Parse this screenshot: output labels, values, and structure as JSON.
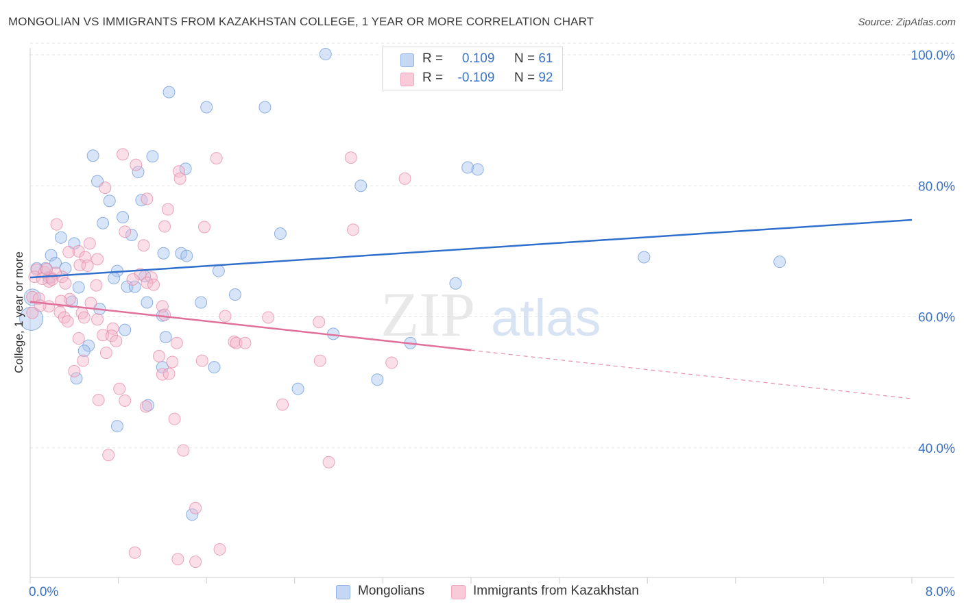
{
  "chart_data": {
    "type": "scatter",
    "title": "MONGOLIAN VS IMMIGRANTS FROM KAZAKHSTAN COLLEGE, 1 YEAR OR MORE CORRELATION CHART",
    "source": "Source: ZipAtlas.com",
    "ylabel": "College, 1 year or more",
    "xlabel": "",
    "xlim": [
      0,
      8
    ],
    "ylim": [
      20,
      102
    ],
    "x_tick_labels": [
      {
        "value": 0,
        "label": "0.0%"
      },
      {
        "value": 8,
        "label": "8.0%"
      }
    ],
    "y_tick_labels": [
      {
        "value": 100,
        "label": "100.0%"
      },
      {
        "value": 80,
        "label": "80.0%"
      },
      {
        "value": 60,
        "label": "60.0%"
      },
      {
        "value": 40,
        "label": "40.0%"
      }
    ],
    "grid": true,
    "watermark": {
      "zip": "ZIP",
      "atlas": "atlas"
    },
    "legend": {
      "placement": "top-center",
      "rows": [
        {
          "r_label": "R =",
          "r_value": "0.109",
          "n_label": "N =",
          "n_value": "61",
          "color": "#a9c4ee"
        },
        {
          "r_label": "R =",
          "r_value": "-0.109",
          "n_label": "N =",
          "n_value": "92",
          "color": "#f4b8cb"
        }
      ]
    },
    "series": [
      {
        "name": "Mongolians",
        "color": "#a9c4ee",
        "stroke": "#6d9ad8",
        "trend": {
          "color": "#2f6fcc",
          "x": [
            0,
            8
          ],
          "y": [
            66.0,
            74.8
          ],
          "dashed_from": null
        },
        "points": [
          [
            2.68,
            100.1
          ],
          [
            1.26,
            94.3
          ],
          [
            1.6,
            92.0
          ],
          [
            2.13,
            92.0
          ],
          [
            0.57,
            84.6
          ],
          [
            1.11,
            84.5
          ],
          [
            0.98,
            82.1
          ],
          [
            1.41,
            82.6
          ],
          [
            3.97,
            82.8
          ],
          [
            4.06,
            82.5
          ],
          [
            0.61,
            80.7
          ],
          [
            3.0,
            80.0
          ],
          [
            0.72,
            77.7
          ],
          [
            1.01,
            77.8
          ],
          [
            0.84,
            75.2
          ],
          [
            0.66,
            74.3
          ],
          [
            0.92,
            72.5
          ],
          [
            2.27,
            72.7
          ],
          [
            0.28,
            72.1
          ],
          [
            0.4,
            71.2
          ],
          [
            1.21,
            69.7
          ],
          [
            1.37,
            69.7
          ],
          [
            1.42,
            69.3
          ],
          [
            0.19,
            69.4
          ],
          [
            5.57,
            69.1
          ],
          [
            6.8,
            68.4
          ],
          [
            0.23,
            68.2
          ],
          [
            0.32,
            67.4
          ],
          [
            0.14,
            67.4
          ],
          [
            0.06,
            67.4
          ],
          [
            0.17,
            66.0
          ],
          [
            0.79,
            67.0
          ],
          [
            1.71,
            67.0
          ],
          [
            0.76,
            65.9
          ],
          [
            1.04,
            66.2
          ],
          [
            0.44,
            64.5
          ],
          [
            0.88,
            64.6
          ],
          [
            0.95,
            64.6
          ],
          [
            3.86,
            65.1
          ],
          [
            1.06,
            62.2
          ],
          [
            0.38,
            62.3
          ],
          [
            1.55,
            62.2
          ],
          [
            1.86,
            63.4
          ],
          [
            0.02,
            63.0
          ],
          [
            0.63,
            61.2
          ],
          [
            1.2,
            60.2
          ],
          [
            0.01,
            59.7
          ],
          [
            0.86,
            58.0
          ],
          [
            2.75,
            57.4
          ],
          [
            1.23,
            56.9
          ],
          [
            3.45,
            56.0
          ],
          [
            0.53,
            55.6
          ],
          [
            0.49,
            54.8
          ],
          [
            1.2,
            52.3
          ],
          [
            1.67,
            52.3
          ],
          [
            0.42,
            50.6
          ],
          [
            3.15,
            50.4
          ],
          [
            2.43,
            49.0
          ],
          [
            1.07,
            46.5
          ],
          [
            0.79,
            43.3
          ],
          [
            1.47,
            29.8
          ]
        ]
      },
      {
        "name": "Immigrants from Kazakhstan",
        "color": "#f4b8cb",
        "stroke": "#e48aa7",
        "trend": {
          "color": "#e0709a",
          "x": [
            0,
            8
          ],
          "y": [
            62.3,
            47.5
          ],
          "dashed_from": 4.0
        },
        "points": [
          [
            0.84,
            84.8
          ],
          [
            1.69,
            84.2
          ],
          [
            2.91,
            84.3
          ],
          [
            0.96,
            83.2
          ],
          [
            1.35,
            82.2
          ],
          [
            1.36,
            81.1
          ],
          [
            3.4,
            81.1
          ],
          [
            0.68,
            79.7
          ],
          [
            1.06,
            78.0
          ],
          [
            1.25,
            76.4
          ],
          [
            0.24,
            74.1
          ],
          [
            1.22,
            73.8
          ],
          [
            1.58,
            73.7
          ],
          [
            2.93,
            73.3
          ],
          [
            0.86,
            73.0
          ],
          [
            0.54,
            71.2
          ],
          [
            1.03,
            70.9
          ],
          [
            0.35,
            69.9
          ],
          [
            0.44,
            70.0
          ],
          [
            0.5,
            69.1
          ],
          [
            0.61,
            68.8
          ],
          [
            0.45,
            67.9
          ],
          [
            0.06,
            67.2
          ],
          [
            0.13,
            66.8
          ],
          [
            0.19,
            66.0
          ],
          [
            0.29,
            66.1
          ],
          [
            1.0,
            66.5
          ],
          [
            1.1,
            66.0
          ],
          [
            1.06,
            65.2
          ],
          [
            0.93,
            65.7
          ],
          [
            0.17,
            65.4
          ],
          [
            0.32,
            65.1
          ],
          [
            0.6,
            64.8
          ],
          [
            1.12,
            64.9
          ],
          [
            0.02,
            63.0
          ],
          [
            0.36,
            62.7
          ],
          [
            0.28,
            62.4
          ],
          [
            0.55,
            62.1
          ],
          [
            0.17,
            61.6
          ],
          [
            1.2,
            61.6
          ],
          [
            0.27,
            60.7
          ],
          [
            0.31,
            59.9
          ],
          [
            0.47,
            60.6
          ],
          [
            0.49,
            59.9
          ],
          [
            0.61,
            59.6
          ],
          [
            1.22,
            60.3
          ],
          [
            1.77,
            60.1
          ],
          [
            2.16,
            59.9
          ],
          [
            0.34,
            59.3
          ],
          [
            2.62,
            59.2
          ],
          [
            0.75,
            58.2
          ],
          [
            0.66,
            57.2
          ],
          [
            0.74,
            57.1
          ],
          [
            0.44,
            56.7
          ],
          [
            0.78,
            56.3
          ],
          [
            1.33,
            56.0
          ],
          [
            1.85,
            56.2
          ],
          [
            1.87,
            56.0
          ],
          [
            1.95,
            56.0
          ],
          [
            0.69,
            54.5
          ],
          [
            1.17,
            54.0
          ],
          [
            0.48,
            53.3
          ],
          [
            1.29,
            53.1
          ],
          [
            1.56,
            53.3
          ],
          [
            2.63,
            53.3
          ],
          [
            3.28,
            53.0
          ],
          [
            0.4,
            51.7
          ],
          [
            1.2,
            51.2
          ],
          [
            1.26,
            51.3
          ],
          [
            0.81,
            49.0
          ],
          [
            0.62,
            47.3
          ],
          [
            0.86,
            47.2
          ],
          [
            1.05,
            46.3
          ],
          [
            2.29,
            46.6
          ],
          [
            1.31,
            44.4
          ],
          [
            0.71,
            38.9
          ],
          [
            1.39,
            39.6
          ],
          [
            2.71,
            37.8
          ],
          [
            1.5,
            30.8
          ],
          [
            0.95,
            24.0
          ],
          [
            1.72,
            24.5
          ],
          [
            1.34,
            23.0
          ],
          [
            1.5,
            22.6
          ],
          [
            0.02,
            60.6
          ],
          [
            0.08,
            62.8
          ],
          [
            0.04,
            66.1
          ],
          [
            0.11,
            65.8
          ],
          [
            0.09,
            61.7
          ],
          [
            0.52,
            67.8
          ],
          [
            0.23,
            66.7
          ],
          [
            0.15,
            67.3
          ],
          [
            0.2,
            65.7
          ]
        ]
      }
    ]
  }
}
